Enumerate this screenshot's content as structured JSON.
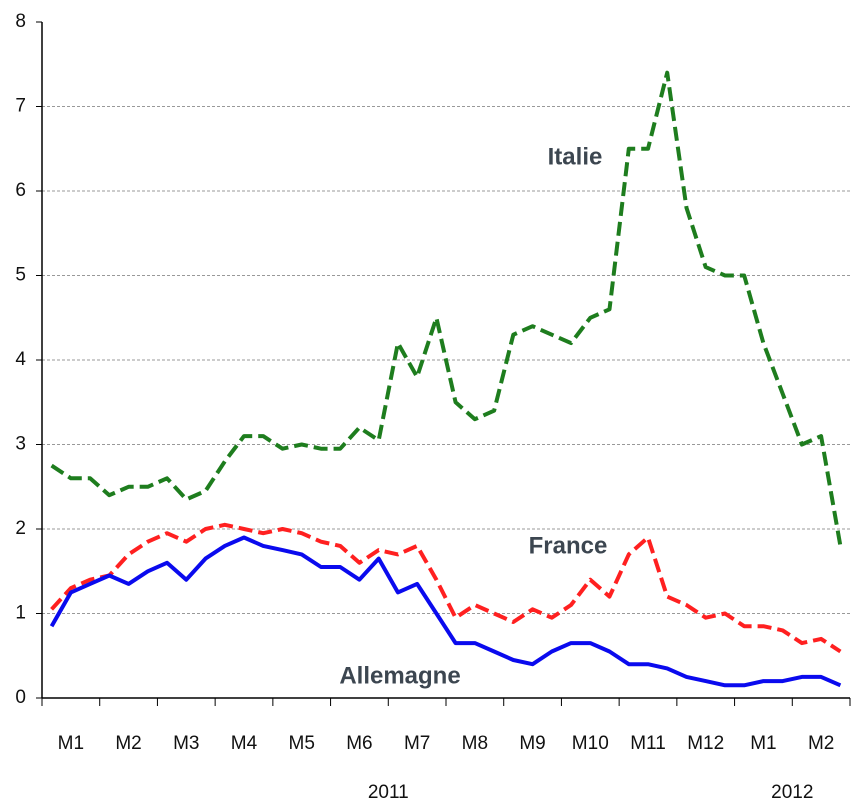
{
  "chart_data": {
    "type": "line",
    "categories": [
      null,
      "M1",
      null,
      null,
      "M2",
      null,
      null,
      "M3",
      null,
      null,
      "M4",
      null,
      null,
      "M5",
      null,
      null,
      "M6",
      null,
      null,
      "M7",
      null,
      null,
      "M8",
      null,
      null,
      "M9",
      null,
      null,
      "M10",
      null,
      null,
      "M11",
      null,
      null,
      "M12",
      null,
      null,
      "M1",
      null,
      null,
      "M2",
      null
    ],
    "years": [
      "2011",
      "2012"
    ],
    "series": [
      {
        "name": "Italie",
        "color": "#1e7d1e",
        "dash": true,
        "values": [
          2.75,
          2.6,
          2.6,
          2.4,
          2.5,
          2.5,
          2.6,
          2.35,
          2.45,
          2.8,
          3.1,
          3.1,
          2.95,
          3.0,
          2.95,
          2.95,
          3.2,
          3.05,
          4.2,
          3.8,
          4.5,
          3.5,
          3.3,
          3.4,
          4.3,
          4.4,
          4.3,
          4.2,
          4.5,
          4.6,
          6.5,
          6.5,
          7.4,
          5.8,
          5.1,
          5.0,
          5.0,
          4.2,
          3.6,
          3.0,
          3.1,
          1.8
        ]
      },
      {
        "name": "France",
        "color": "#ff2020",
        "dash": true,
        "values": [
          1.05,
          1.3,
          1.4,
          1.45,
          1.7,
          1.85,
          1.95,
          1.85,
          2.0,
          2.05,
          2.0,
          1.95,
          2.0,
          1.95,
          1.85,
          1.8,
          1.6,
          1.75,
          1.7,
          1.8,
          1.4,
          0.95,
          1.1,
          1.0,
          0.9,
          1.05,
          0.95,
          1.1,
          1.4,
          1.2,
          1.7,
          1.9,
          1.2,
          1.1,
          0.95,
          1.0,
          0.85,
          0.85,
          0.8,
          0.65,
          0.7,
          0.55
        ]
      },
      {
        "name": "Allemagne",
        "color": "#0a0aee",
        "dash": false,
        "values": [
          0.85,
          1.25,
          1.35,
          1.45,
          1.35,
          1.5,
          1.6,
          1.4,
          1.65,
          1.8,
          1.9,
          1.8,
          1.75,
          1.7,
          1.55,
          1.55,
          1.4,
          1.65,
          1.25,
          1.35,
          1.0,
          0.65,
          0.65,
          0.55,
          0.45,
          0.4,
          0.55,
          0.65,
          0.65,
          0.55,
          0.4,
          0.4,
          0.35,
          0.25,
          0.2,
          0.15,
          0.15,
          0.2,
          0.2,
          0.25,
          0.25,
          0.15
        ]
      }
    ],
    "ylim": [
      0,
      8
    ],
    "yticks": [
      0,
      1,
      2,
      3,
      4,
      5,
      6,
      7,
      8
    ],
    "grid": true
  }
}
